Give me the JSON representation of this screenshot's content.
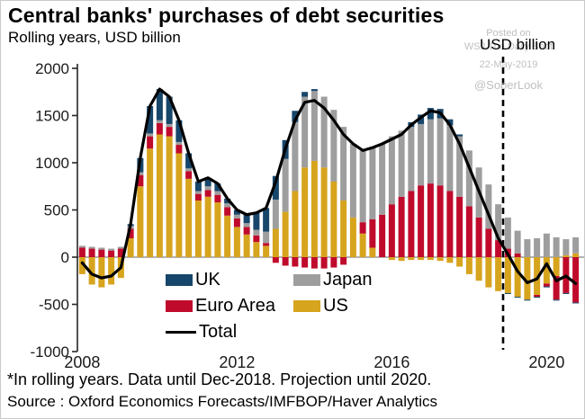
{
  "header": {
    "title": "Central banks' purchases of debt securities",
    "subtitle": "Rolling years, USD billion",
    "right_axis_label": "USD billion"
  },
  "watermark": {
    "line1": "Posted on",
    "line2": "WSJ The Daily Shot",
    "line3": "22-May-2019",
    "line4": "@SoberLook"
  },
  "footer": {
    "note": "*In rolling years. Data until Dec-2018. Projection until 2020.",
    "source": "Source : Oxford Economics Forecasts/IMFBOP/Haver Analytics"
  },
  "chart_data": {
    "type": "bar",
    "subtype": "stacked-bars-with-total-line",
    "title": "Central banks' purchases of debt securities",
    "xlabel": "",
    "ylabel": "USD billion",
    "ylim": [
      -1000,
      2000
    ],
    "yticks": [
      2000,
      1500,
      1000,
      500,
      0,
      -500,
      -1000
    ],
    "grid": "zero-line-only",
    "legend_position": "inside-bottom-left",
    "categories": [
      "2008 Q1",
      "2008 Q2",
      "2008 Q3",
      "2008 Q4",
      "2009 Q1",
      "2009 Q2",
      "2009 Q3",
      "2009 Q4",
      "2010 Q1",
      "2010 Q2",
      "2010 Q3",
      "2010 Q4",
      "2011 Q1",
      "2011 Q2",
      "2011 Q3",
      "2011 Q4",
      "2012 Q1",
      "2012 Q2",
      "2012 Q3",
      "2012 Q4",
      "2013 Q1",
      "2013 Q2",
      "2013 Q3",
      "2013 Q4",
      "2014 Q1",
      "2014 Q2",
      "2014 Q3",
      "2014 Q4",
      "2015 Q1",
      "2015 Q2",
      "2015 Q3",
      "2015 Q4",
      "2016 Q1",
      "2016 Q2",
      "2016 Q3",
      "2016 Q4",
      "2017 Q1",
      "2017 Q2",
      "2017 Q3",
      "2017 Q4",
      "2018 Q1",
      "2018 Q2",
      "2018 Q3",
      "2018 Q4",
      "2019 Q1",
      "2019 Q2",
      "2019 Q3",
      "2019 Q4",
      "2020 Q1",
      "2020 Q2",
      "2020 Q3",
      "2020 Q4"
    ],
    "xticks": [
      {
        "label": "2008",
        "index": 0
      },
      {
        "label": "2012",
        "index": 16
      },
      {
        "label": "2016",
        "index": 32
      },
      {
        "label": "2020",
        "index": 48
      }
    ],
    "series": [
      {
        "name": "UK",
        "color": "#17466B",
        "values": [
          0,
          0,
          0,
          0,
          0,
          20,
          150,
          290,
          330,
          290,
          230,
          160,
          100,
          90,
          80,
          50,
          50,
          90,
          180,
          250,
          250,
          200,
          120,
          50,
          20,
          0,
          0,
          0,
          0,
          0,
          0,
          0,
          0,
          0,
          50,
          100,
          120,
          100,
          60,
          20,
          0,
          0,
          0,
          0,
          -10,
          -10,
          -10,
          -10,
          -10,
          -10,
          -10,
          -10
        ]
      },
      {
        "name": "Euro Area",
        "color": "#C00A2C",
        "values": [
          100,
          90,
          80,
          70,
          90,
          100,
          120,
          130,
          120,
          100,
          90,
          80,
          70,
          70,
          80,
          90,
          90,
          80,
          70,
          30,
          -60,
          -90,
          -100,
          -110,
          -120,
          -120,
          -110,
          -80,
          0,
          120,
          300,
          450,
          560,
          640,
          700,
          760,
          780,
          760,
          700,
          640,
          540,
          420,
          300,
          180,
          90,
          40,
          0,
          -20,
          -30,
          -250,
          -380,
          -480
        ]
      },
      {
        "name": "Japan",
        "color": "#9E9E9E",
        "values": [
          20,
          20,
          20,
          20,
          20,
          30,
          30,
          30,
          30,
          30,
          30,
          30,
          30,
          40,
          40,
          40,
          40,
          40,
          60,
          120,
          310,
          560,
          730,
          750,
          740,
          750,
          760,
          780,
          780,
          760,
          760,
          750,
          720,
          700,
          680,
          650,
          680,
          710,
          700,
          640,
          590,
          530,
          470,
          380,
          330,
          240,
          190,
          200,
          250,
          210,
          170,
          170
        ]
      },
      {
        "name": "US",
        "color": "#D7A41E",
        "values": [
          -180,
          -290,
          -320,
          -290,
          -220,
          200,
          750,
          1150,
          1300,
          1280,
          1100,
          830,
          600,
          640,
          580,
          440,
          320,
          240,
          160,
          120,
          300,
          480,
          700,
          950,
          1020,
          950,
          800,
          600,
          420,
          250,
          100,
          0,
          -30,
          -40,
          -30,
          -30,
          -30,
          -40,
          -60,
          -100,
          -180,
          -250,
          -320,
          -360,
          -380,
          -420,
          -450,
          -400,
          -280,
          -200,
          20,
          40
        ]
      }
    ],
    "total_series": {
      "name": "Total",
      "color": "#000000",
      "values": [
        -60,
        -180,
        -220,
        -200,
        -110,
        350,
        1050,
        1600,
        1780,
        1700,
        1450,
        1100,
        800,
        840,
        780,
        620,
        500,
        450,
        470,
        520,
        800,
        1150,
        1450,
        1640,
        1660,
        1580,
        1450,
        1300,
        1200,
        1130,
        1160,
        1200,
        1250,
        1300,
        1400,
        1480,
        1550,
        1530,
        1400,
        1200,
        950,
        700,
        450,
        200,
        30,
        -150,
        -270,
        -230,
        -70,
        -250,
        -200,
        -280
      ]
    },
    "projection_divider": {
      "after_index": 43,
      "meaning": "Data until Dec-2018, projection until 2020",
      "style": "black-dashed-vertical"
    },
    "colors": {
      "zero_line": "#858585",
      "axis": "#262626",
      "watermark": "#bfbfbf"
    }
  }
}
